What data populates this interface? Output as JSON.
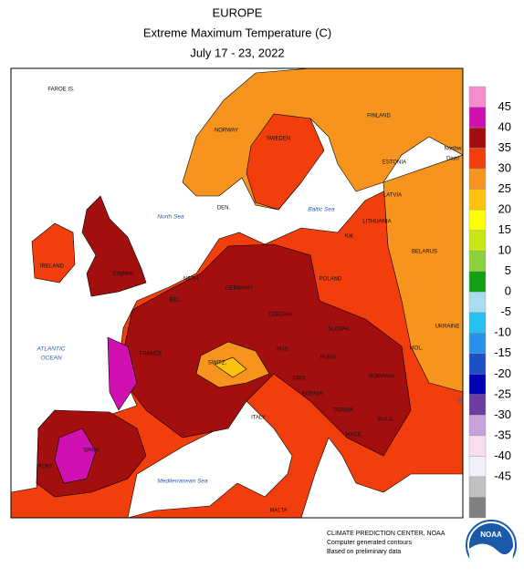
{
  "header": {
    "title": "EUROPE",
    "subtitle": "Extreme Maximum Temperature (C)",
    "dates": "July 17 - 23, 2022"
  },
  "map": {
    "labels": [
      "FAROE IS.",
      "NORWAY",
      "SWEDEN",
      "FINLAND",
      "ESTONIA",
      "LATVIA",
      "LITHUANIA",
      "Northw",
      "Distri",
      "DEN.",
      "North Sea",
      "Baltic Sea",
      "Kal.",
      "BELARUS",
      "IRELAND",
      "England",
      "NETH.",
      "BEL.",
      "GERMANY",
      "POLAND",
      "CZECHIA",
      "SLOVAK.",
      "UKRAINE",
      "MOL.",
      "AUS.",
      "SWITZ.",
      "FRANCE",
      "HUNG.",
      "ROMANIA",
      "CRO.",
      "BOSNIA",
      "SERBIA",
      "BULG.",
      "MACE.",
      "ITALY",
      "ATLANTIC",
      "OCEAN",
      "SPAIN",
      "PORT.",
      "Mediterranean Sea",
      "MALTA",
      "B"
    ]
  },
  "legend": {
    "labels": [
      45,
      40,
      35,
      30,
      25,
      20,
      15,
      10,
      5,
      0,
      -5,
      -10,
      -15,
      -20,
      -25,
      -30,
      -35,
      -40,
      -45
    ],
    "colors": [
      "#f48ccd",
      "#d010b0",
      "#a30f0f",
      "#f23d0c",
      "#f7941d",
      "#ffc20e",
      "#ffff00",
      "#c8e614",
      "#8cd23c",
      "#14a014",
      "#a8dcf0",
      "#28c0f0",
      "#2890e8",
      "#1e50c8",
      "#0000b4",
      "#6e3ca0",
      "#c8a0dc",
      "#f8dcf0",
      "#f0f0fa",
      "#c0c0c0",
      "#808080"
    ]
  },
  "footer": {
    "line1": "CLIMATE PREDICTION CENTER, NOAA",
    "line2": "Computer generated contours",
    "line3": "Based on preliminary data",
    "logo": "NOAA"
  }
}
